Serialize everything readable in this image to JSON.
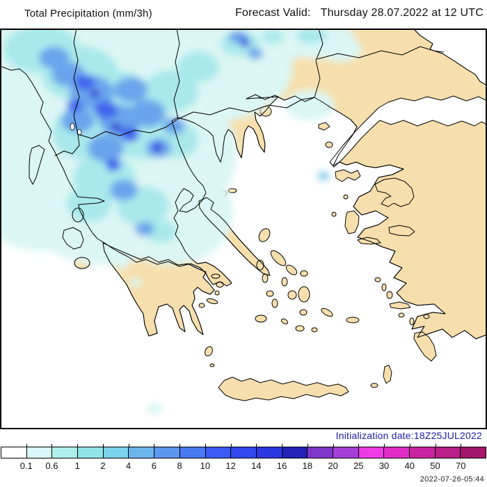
{
  "header": {
    "product_title": "Total Precipitation (mm/3h)",
    "forecast_label": "Forecast Valid:",
    "forecast_value": "Thursday 28.07.2022 at 12 UTC"
  },
  "map": {
    "sea_color": "#ffffff",
    "land_color": "#f7dfad",
    "coastline_color": "#000000",
    "precip_shade_colors": [
      "#dbf6f4",
      "#a9e9eb",
      "#6aa4ec",
      "#3f66ee",
      "#2736cf"
    ]
  },
  "legend": {
    "tick_labels": [
      "0.1",
      "0.6",
      "1",
      "2",
      "4",
      "6",
      "8",
      "10",
      "12",
      "14",
      "16",
      "18",
      "20",
      "25",
      "30",
      "40",
      "50",
      "70"
    ],
    "band_colors": [
      "#ffffff",
      "#d9f7f5",
      "#b0eeec",
      "#8fe4e8",
      "#7bd2ec",
      "#6bb5ec",
      "#5b97ee",
      "#4879f2",
      "#3a5cf4",
      "#3347ee",
      "#2b38e2",
      "#2121b6",
      "#7e35c8",
      "#a53ed8",
      "#ef3ae8",
      "#e02cc4",
      "#cb24a0",
      "#b81f8a",
      "#a2176a"
    ]
  },
  "footer": {
    "initialization_text": "Initialization date:18Z25JUL2022",
    "initialization_color": "#1c1cae",
    "created_timestamp": "2022-07-26-05:44"
  }
}
